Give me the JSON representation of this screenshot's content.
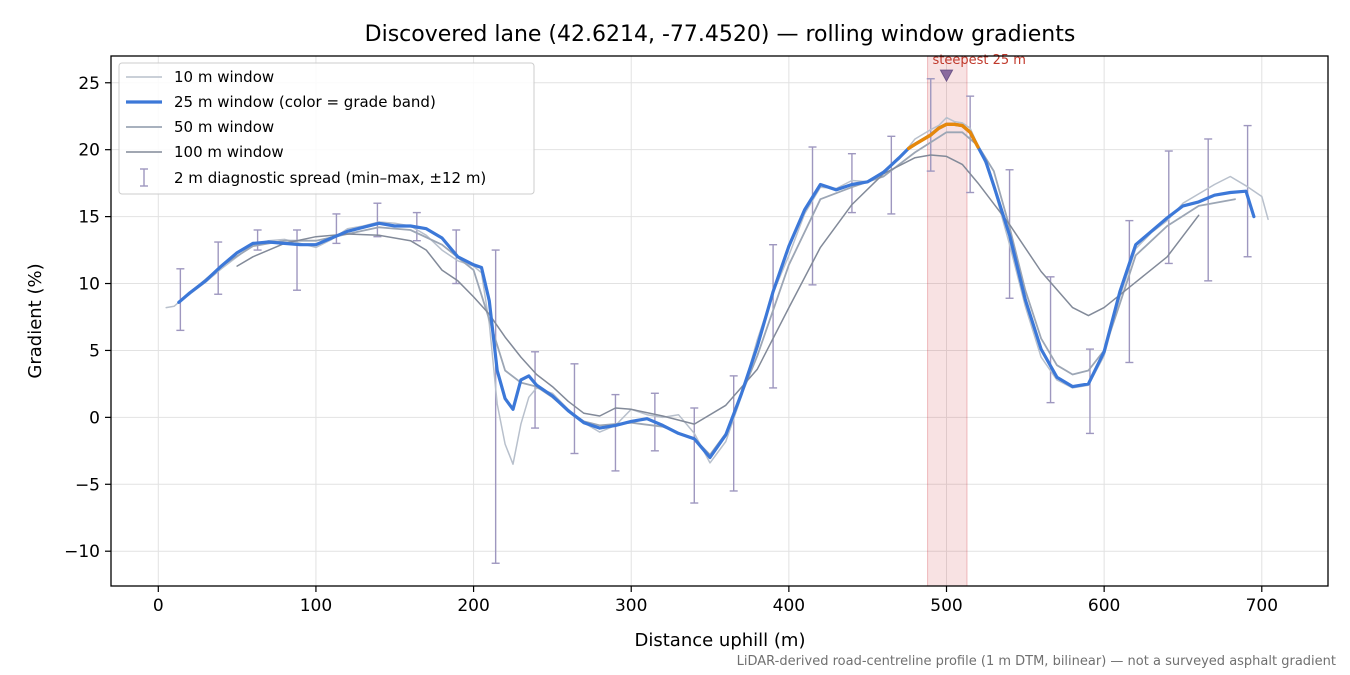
{
  "chart_data": {
    "type": "line",
    "title": "Discovered lane (42.6214, -77.4520) — rolling window gradients",
    "xlabel": "Distance uphill (m)",
    "ylabel": "Gradient (%)",
    "xlim": [
      -30,
      742
    ],
    "ylim": [
      -12.6,
      27.0
    ],
    "xticks": [
      0,
      100,
      200,
      300,
      400,
      500,
      600,
      700
    ],
    "yticks": [
      -10,
      -5,
      0,
      5,
      10,
      15,
      20,
      25
    ],
    "grid": true,
    "legend_position": "upper-left",
    "series": [
      {
        "name": "10 m window",
        "color": "#b8c0cc",
        "x": [
          5,
          10,
          15,
          20,
          30,
          40,
          50,
          60,
          70,
          80,
          90,
          100,
          110,
          120,
          130,
          140,
          150,
          160,
          170,
          180,
          190,
          200,
          205,
          210,
          215,
          220,
          225,
          230,
          235,
          240,
          250,
          260,
          270,
          280,
          290,
          300,
          310,
          320,
          330,
          340,
          350,
          360,
          370,
          380,
          390,
          400,
          410,
          420,
          430,
          440,
          450,
          460,
          470,
          480,
          490,
          495,
          500,
          505,
          510,
          515,
          520,
          525,
          530,
          540,
          550,
          560,
          570,
          580,
          590,
          600,
          610,
          620,
          630,
          640,
          650,
          660,
          670,
          680,
          690,
          700,
          704
        ],
        "y": [
          8.2,
          8.3,
          8.8,
          9.2,
          10.1,
          11.1,
          12.0,
          12.9,
          13.2,
          13.3,
          13.0,
          12.7,
          13.3,
          14.1,
          14.3,
          14.6,
          14.5,
          14.3,
          13.6,
          12.5,
          11.7,
          11.3,
          10.8,
          7.0,
          1.0,
          -2.0,
          -3.5,
          -0.5,
          1.5,
          2.2,
          1.8,
          0.6,
          -0.4,
          -1.1,
          -0.6,
          0.6,
          0.2,
          0.0,
          0.2,
          -1.2,
          -3.4,
          -1.8,
          1.6,
          5.8,
          9.3,
          12.1,
          15.2,
          17.2,
          17.1,
          17.7,
          17.6,
          18.4,
          19.3,
          20.8,
          21.5,
          21.8,
          22.4,
          22.1,
          22.0,
          21.6,
          20.3,
          18.9,
          17.2,
          12.9,
          8.3,
          4.5,
          2.8,
          2.2,
          2.4,
          4.6,
          9.0,
          12.6,
          13.8,
          14.7,
          16.0,
          16.7,
          17.4,
          18.0,
          17.3,
          16.5,
          14.8
        ]
      },
      {
        "name": "25 m window (color = grade band)",
        "color": "#3c78d8",
        "band_color": "#e6880a",
        "band_range": [
          476,
          520
        ],
        "x": [
          13,
          20,
          30,
          40,
          50,
          60,
          70,
          80,
          90,
          100,
          110,
          120,
          130,
          140,
          150,
          160,
          170,
          180,
          190,
          200,
          205,
          210,
          215,
          220,
          225,
          230,
          235,
          240,
          250,
          260,
          270,
          280,
          290,
          300,
          310,
          320,
          330,
          340,
          350,
          360,
          370,
          380,
          390,
          400,
          410,
          420,
          430,
          440,
          450,
          460,
          470,
          476,
          480,
          490,
          495,
          500,
          505,
          510,
          515,
          520,
          525,
          530,
          540,
          550,
          560,
          570,
          580,
          590,
          600,
          610,
          620,
          630,
          640,
          650,
          660,
          670,
          680,
          690,
          695
        ],
        "y": [
          8.6,
          9.3,
          10.2,
          11.3,
          12.3,
          13.0,
          13.1,
          13.0,
          12.9,
          12.9,
          13.4,
          13.9,
          14.2,
          14.5,
          14.3,
          14.3,
          14.1,
          13.4,
          12.0,
          11.4,
          11.2,
          8.7,
          3.5,
          1.4,
          0.6,
          2.8,
          3.1,
          2.4,
          1.6,
          0.5,
          -0.4,
          -0.8,
          -0.6,
          -0.3,
          -0.1,
          -0.6,
          -1.2,
          -1.6,
          -3.0,
          -1.3,
          1.8,
          5.3,
          9.4,
          12.8,
          15.5,
          17.4,
          17.0,
          17.4,
          17.6,
          18.3,
          19.4,
          20.1,
          20.4,
          21.1,
          21.6,
          21.9,
          21.9,
          21.8,
          21.3,
          20.2,
          19.1,
          17.3,
          13.6,
          8.8,
          5.1,
          3.0,
          2.3,
          2.5,
          4.9,
          9.4,
          12.9,
          13.9,
          14.9,
          15.8,
          16.1,
          16.6,
          16.8,
          16.9,
          15.0
        ]
      },
      {
        "name": "50 m window",
        "color": "#9ca6b5",
        "x": [
          25,
          40,
          60,
          80,
          100,
          120,
          140,
          160,
          180,
          200,
          210,
          220,
          230,
          240,
          250,
          260,
          270,
          280,
          300,
          320,
          340,
          350,
          360,
          380,
          400,
          420,
          440,
          460,
          480,
          500,
          510,
          520,
          530,
          540,
          550,
          560,
          570,
          580,
          590,
          600,
          610,
          620,
          640,
          660,
          683
        ],
        "y": [
          9.8,
          11.3,
          12.8,
          13.2,
          13.2,
          13.7,
          14.2,
          14.0,
          12.9,
          11.0,
          7.3,
          3.5,
          2.6,
          2.3,
          1.5,
          0.5,
          -0.3,
          -0.6,
          -0.4,
          -0.7,
          -1.6,
          -2.8,
          -1.2,
          4.6,
          11.4,
          16.3,
          17.2,
          18.0,
          19.8,
          21.3,
          21.3,
          20.3,
          18.4,
          14.2,
          9.5,
          5.9,
          3.9,
          3.2,
          3.5,
          5.0,
          8.5,
          12.1,
          14.3,
          15.8,
          16.3
        ]
      },
      {
        "name": "100 m window",
        "color": "#828a99",
        "x": [
          50,
          60,
          80,
          100,
          120,
          140,
          160,
          170,
          180,
          190,
          200,
          210,
          220,
          230,
          240,
          250,
          260,
          270,
          280,
          290,
          300,
          320,
          340,
          360,
          380,
          400,
          420,
          440,
          460,
          480,
          490,
          500,
          510,
          520,
          540,
          560,
          580,
          590,
          600,
          620,
          640,
          660
        ],
        "y": [
          11.3,
          12.0,
          13.0,
          13.5,
          13.7,
          13.6,
          13.2,
          12.5,
          11.0,
          10.2,
          9.0,
          7.7,
          6.0,
          4.5,
          3.2,
          2.3,
          1.2,
          0.3,
          0.1,
          0.7,
          0.6,
          0.1,
          -0.5,
          0.9,
          3.6,
          8.2,
          12.7,
          15.9,
          18.2,
          19.4,
          19.6,
          19.5,
          18.9,
          17.5,
          14.4,
          10.9,
          8.2,
          7.6,
          8.2,
          10.1,
          12.0,
          15.1
        ]
      }
    ],
    "errorbars": {
      "name": "2 m diagnostic spread (min–max, ±12 m)",
      "color": "#9e97bf",
      "points": [
        {
          "x": 14,
          "lo": 6.5,
          "hi": 11.1
        },
        {
          "x": 38,
          "lo": 9.2,
          "hi": 13.1
        },
        {
          "x": 63,
          "lo": 12.5,
          "hi": 14.0
        },
        {
          "x": 88,
          "lo": 9.5,
          "hi": 14.0
        },
        {
          "x": 113,
          "lo": 13.0,
          "hi": 15.2
        },
        {
          "x": 139,
          "lo": 13.5,
          "hi": 16.0
        },
        {
          "x": 164,
          "lo": 13.2,
          "hi": 15.3
        },
        {
          "x": 189,
          "lo": 10.0,
          "hi": 14.0
        },
        {
          "x": 214,
          "lo": -10.9,
          "hi": 12.5
        },
        {
          "x": 239,
          "lo": -0.8,
          "hi": 4.9
        },
        {
          "x": 264,
          "lo": -2.7,
          "hi": 4.0
        },
        {
          "x": 290,
          "lo": -4.0,
          "hi": 1.7
        },
        {
          "x": 315,
          "lo": -2.5,
          "hi": 1.8
        },
        {
          "x": 340,
          "lo": -6.4,
          "hi": 0.7
        },
        {
          "x": 365,
          "lo": -5.5,
          "hi": 3.1
        },
        {
          "x": 390,
          "lo": 2.2,
          "hi": 12.9
        },
        {
          "x": 415,
          "lo": 9.9,
          "hi": 20.2
        },
        {
          "x": 440,
          "lo": 15.3,
          "hi": 19.7
        },
        {
          "x": 465,
          "lo": 15.2,
          "hi": 21.0
        },
        {
          "x": 490,
          "lo": 18.4,
          "hi": 25.3
        },
        {
          "x": 515,
          "lo": 16.8,
          "hi": 24.0
        },
        {
          "x": 540,
          "lo": 8.9,
          "hi": 18.5
        },
        {
          "x": 566,
          "lo": 1.1,
          "hi": 10.5
        },
        {
          "x": 591,
          "lo": -1.2,
          "hi": 5.1
        },
        {
          "x": 616,
          "lo": 4.1,
          "hi": 14.7
        },
        {
          "x": 641,
          "lo": 11.5,
          "hi": 19.9
        },
        {
          "x": 666,
          "lo": 10.2,
          "hi": 20.8
        },
        {
          "x": 691,
          "lo": 12.0,
          "hi": 21.8
        }
      ]
    },
    "highlight": {
      "label": "steepest 25 m",
      "x_range": [
        488,
        513
      ],
      "marker_x": 500,
      "marker_y": 25.5,
      "color": "#d0323c"
    },
    "footnote": "LiDAR-derived road-centreline profile (1 m DTM, bilinear) — not a surveyed asphalt gradient"
  }
}
